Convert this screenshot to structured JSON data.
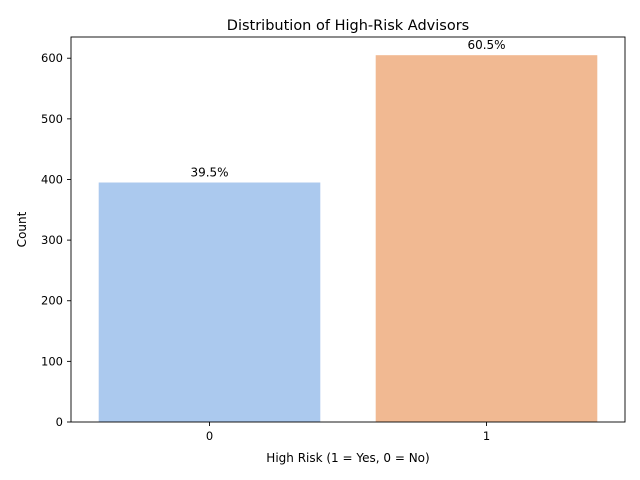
{
  "chart_data": {
    "type": "bar",
    "title": "Distribution of High-Risk Advisors",
    "xlabel": "High Risk (1 = Yes, 0 = No)",
    "ylabel": "Count",
    "categories": [
      "0",
      "1"
    ],
    "values": [
      395,
      605
    ],
    "data_labels": [
      "39.5%",
      "60.5%"
    ],
    "colors": [
      "#abc9ee",
      "#f1b992"
    ],
    "ylim": [
      0,
      635
    ],
    "yticks": [
      0,
      100,
      200,
      300,
      400,
      500,
      600
    ],
    "grid": false,
    "legend": "none"
  }
}
